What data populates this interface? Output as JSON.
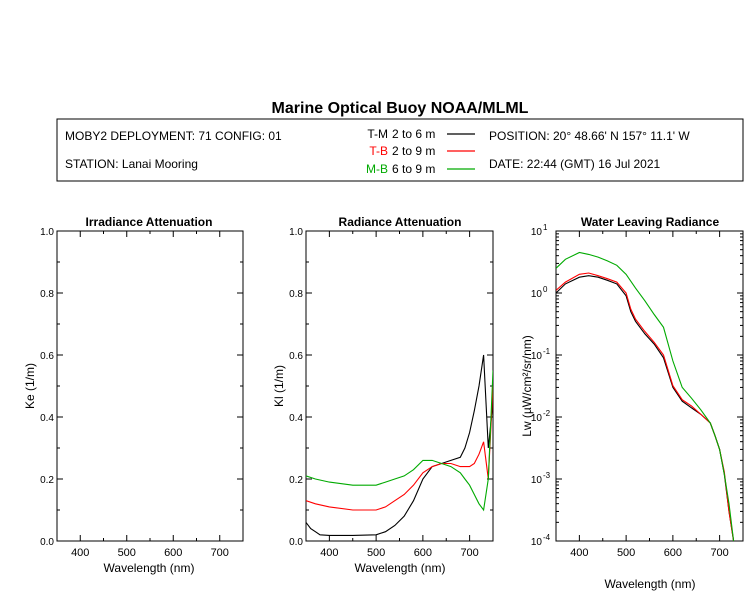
{
  "title": "Marine Optical Buoy NOAA/MLML",
  "header": {
    "deployment": "MOBY2 DEPLOYMENT: 71 CONFIG: 01",
    "station": "STATION: Lanai Mooring",
    "position": "POSITION: 20° 48.66' N   157° 11.1' W",
    "date": "DATE: 22:44 (GMT) 16 Jul 2021"
  },
  "legend": [
    {
      "label": "T-M",
      "range": "2 to 6  m",
      "color": "#000000"
    },
    {
      "label": "T-B",
      "range": "2 to 9  m",
      "color": "#ff0000"
    },
    {
      "label": "M-B",
      "range": "6 to 9  m",
      "color": "#00aa00"
    }
  ],
  "chart_data": [
    {
      "type": "line",
      "title": "Irradiance Attenuation",
      "xlabel": "Wavelength (nm)",
      "ylabel": "Ke  (1/m)",
      "xlim": [
        350,
        750
      ],
      "ylim": [
        0,
        1
      ],
      "xticks": [
        "400",
        "500",
        "600",
        "700"
      ],
      "yticks": [
        "0.0",
        "0.2",
        "0.4",
        "0.6",
        "0.8",
        "1.0"
      ],
      "series": []
    },
    {
      "type": "line",
      "title": "Radiance Attenuation",
      "xlabel": "Wavelength (nm)",
      "ylabel": "Kl  (1/m)",
      "xlim": [
        350,
        750
      ],
      "ylim": [
        0,
        1
      ],
      "xticks": [
        "400",
        "500",
        "600",
        "700"
      ],
      "yticks": [
        "0.0",
        "0.2",
        "0.4",
        "0.6",
        "0.8",
        "1.0"
      ],
      "series": [
        {
          "name": "T-M",
          "color": "#000000",
          "x": [
            350,
            360,
            370,
            380,
            400,
            450,
            500,
            520,
            540,
            560,
            580,
            600,
            620,
            640,
            660,
            680,
            690,
            700,
            710,
            720,
            730,
            740,
            750
          ],
          "y": [
            0.06,
            0.04,
            0.03,
            0.02,
            0.018,
            0.018,
            0.02,
            0.03,
            0.05,
            0.08,
            0.13,
            0.2,
            0.24,
            0.25,
            0.26,
            0.27,
            0.3,
            0.35,
            0.42,
            0.5,
            0.6,
            0.3,
            0.45
          ]
        },
        {
          "name": "T-B",
          "color": "#ff0000",
          "x": [
            350,
            370,
            400,
            450,
            500,
            520,
            540,
            560,
            580,
            600,
            620,
            640,
            660,
            680,
            700,
            710,
            720,
            730,
            740,
            750
          ],
          "y": [
            0.13,
            0.12,
            0.11,
            0.1,
            0.1,
            0.11,
            0.13,
            0.15,
            0.18,
            0.22,
            0.24,
            0.25,
            0.25,
            0.24,
            0.24,
            0.25,
            0.28,
            0.32,
            0.2,
            0.5
          ]
        },
        {
          "name": "M-B",
          "color": "#00aa00",
          "x": [
            350,
            370,
            400,
            450,
            500,
            520,
            540,
            560,
            580,
            600,
            620,
            640,
            660,
            680,
            690,
            700,
            710,
            720,
            730,
            740,
            750
          ],
          "y": [
            0.21,
            0.2,
            0.19,
            0.18,
            0.18,
            0.19,
            0.2,
            0.21,
            0.23,
            0.26,
            0.26,
            0.25,
            0.24,
            0.22,
            0.2,
            0.18,
            0.15,
            0.12,
            0.1,
            0.2,
            0.55
          ]
        }
      ]
    },
    {
      "type": "line",
      "title": "Water Leaving Radiance",
      "xlabel": "Wavelength (nm)",
      "ylabel": "Lw  (µW/cm²/sr/nm)",
      "xlim": [
        350,
        750
      ],
      "ylim": [
        0.0001,
        10
      ],
      "yscale": "log",
      "xticks": [
        "400",
        "500",
        "600",
        "700"
      ],
      "yticks": [
        "10^1",
        "10^0",
        "10^-1",
        "10^-2",
        "10^-3",
        "10^-4"
      ],
      "series": [
        {
          "name": "T-M",
          "color": "#000000",
          "x": [
            350,
            370,
            400,
            420,
            440,
            460,
            480,
            500,
            510,
            520,
            540,
            560,
            580,
            600,
            620,
            640,
            660,
            680,
            690,
            700,
            710,
            720,
            730
          ],
          "y": [
            1.0,
            1.4,
            1.8,
            1.9,
            1.8,
            1.6,
            1.4,
            0.9,
            0.5,
            0.35,
            0.22,
            0.15,
            0.09,
            0.03,
            0.018,
            0.014,
            0.011,
            0.008,
            0.005,
            0.003,
            0.0012,
            0.0003,
            0.0001
          ]
        },
        {
          "name": "T-B",
          "color": "#ff0000",
          "x": [
            350,
            370,
            400,
            420,
            440,
            460,
            480,
            500,
            510,
            520,
            540,
            560,
            580,
            600,
            620,
            640,
            660,
            680,
            690,
            700,
            710,
            720,
            730
          ],
          "y": [
            1.1,
            1.5,
            2.0,
            2.1,
            1.9,
            1.7,
            1.5,
            1.0,
            0.55,
            0.38,
            0.24,
            0.16,
            0.1,
            0.032,
            0.019,
            0.015,
            0.011,
            0.008,
            0.005,
            0.003,
            0.0013,
            0.0003,
            0.0001
          ]
        },
        {
          "name": "M-B",
          "color": "#00aa00",
          "x": [
            350,
            370,
            400,
            420,
            440,
            460,
            480,
            500,
            520,
            540,
            560,
            580,
            600,
            620,
            640,
            660,
            680,
            690,
            700,
            710,
            720,
            730
          ],
          "y": [
            2.5,
            3.5,
            4.5,
            4.2,
            3.8,
            3.3,
            2.8,
            2.0,
            1.2,
            0.75,
            0.45,
            0.28,
            0.08,
            0.03,
            0.02,
            0.013,
            0.008,
            0.005,
            0.003,
            0.0012,
            0.0004,
            0.0001
          ]
        }
      ]
    }
  ]
}
